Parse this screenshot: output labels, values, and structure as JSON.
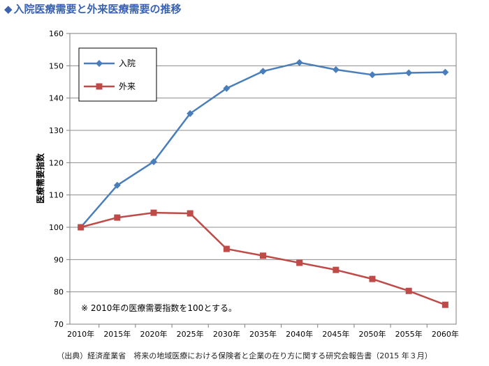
{
  "title": "入院医療需要と外来医療需要の推移",
  "source": "（出典）経済産業省　将来の地域医療における保険者と企業の在り方に関する研究会報告書（2015 年３月）",
  "chart_data": {
    "type": "line",
    "title": "入院医療需要と外来医療需要の推移",
    "ylabel": "医療需要指数",
    "xlabel": "",
    "categories": [
      "2010年",
      "2015年",
      "2020年",
      "2025年",
      "2030年",
      "2035年",
      "2040年",
      "2045年",
      "2050年",
      "2055年",
      "2060年"
    ],
    "ylim": [
      70,
      160
    ],
    "yticks": [
      70,
      80,
      90,
      100,
      110,
      120,
      130,
      140,
      150,
      160
    ],
    "grid": "y-major",
    "legend_position": "top-left",
    "series": [
      {
        "name": "入院",
        "color": "#4a7ebb",
        "marker": "diamond",
        "values": [
          100,
          113,
          120.3,
          135.2,
          143,
          148.3,
          151,
          148.8,
          147.2,
          147.8,
          148
        ]
      },
      {
        "name": "外来",
        "color": "#be4b48",
        "marker": "square",
        "values": [
          100,
          103,
          104.5,
          104.3,
          93.3,
          91.2,
          89,
          86.8,
          84,
          80.3,
          76
        ]
      }
    ],
    "annotation": "※ 2010年の医療需要指数を100とする。"
  }
}
